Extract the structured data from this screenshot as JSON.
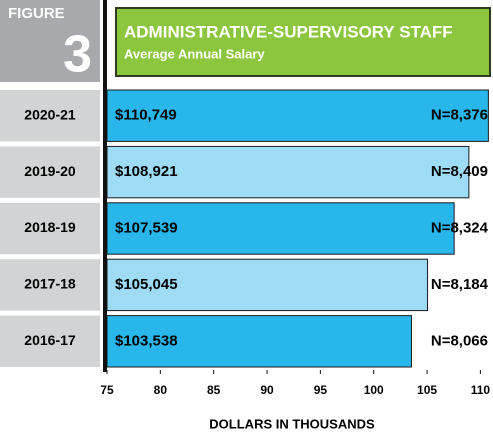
{
  "chart_data": {
    "type": "barh",
    "figure_label": "FIGURE",
    "figure_number": "3",
    "title": "ADMINISTRATIVE-SUPERVISORY STAFF",
    "subtitle": "Average Annual Salary",
    "categories": [
      "2020-21",
      "2019-20",
      "2018-19",
      "2017-18",
      "2016-17"
    ],
    "values": [
      110.749,
      108.921,
      107.539,
      105.045,
      103.538
    ],
    "value_labels": [
      "$110,749",
      "$108,921",
      "$107,539",
      "$105,045",
      "$103,538"
    ],
    "n_labels": [
      "N=8,376",
      "N=8,409",
      "N=8,324",
      "N=8,184",
      "N=8,066"
    ],
    "colors": [
      "#29b6ea",
      "#9edcf6",
      "#29b6ea",
      "#9edcf6",
      "#29b6ea"
    ],
    "xlim": [
      75,
      110.9
    ],
    "xticks": [
      75,
      80,
      85,
      90,
      95,
      100,
      105,
      110
    ],
    "xlabel": "DOLLARS IN THOUSANDS"
  }
}
